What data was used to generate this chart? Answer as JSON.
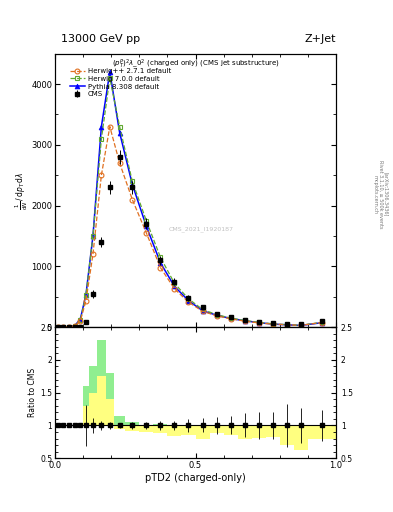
{
  "title_top": "13000 GeV pp",
  "title_right": "Z+Jet",
  "plot_title": "$(p_T^P)^2\\lambda_0^2$ (charged only) (CMS jet substructure)",
  "xlabel": "pTD2 (charged-only)",
  "ylabel_main_lines": [
    "mathrm d$^2$N",
    "mathrm d p$_T$ mathrm d$\\lambda$"
  ],
  "ylabel_ratio": "Ratio to CMS",
  "right_label1": "Rivet 3.1.10, ≥ 500k events",
  "right_label2": "[arXiv:1306.3436]",
  "right_label3": "mcplots.cern.ch",
  "watermark": "CMS_2021_I1920187",
  "x_bins": [
    0.0,
    0.02,
    0.04,
    0.06,
    0.08,
    0.1,
    0.12,
    0.15,
    0.18,
    0.21,
    0.25,
    0.3,
    0.35,
    0.4,
    0.45,
    0.5,
    0.55,
    0.6,
    0.65,
    0.7,
    0.75,
    0.8,
    0.85,
    0.9,
    1.0
  ],
  "cms_values": [
    0,
    0,
    0,
    0,
    0,
    80,
    550,
    1400,
    2300,
    2800,
    2300,
    1700,
    1100,
    750,
    480,
    330,
    210,
    160,
    120,
    85,
    60,
    55,
    45,
    95
  ],
  "cms_errors": [
    5,
    5,
    5,
    5,
    5,
    25,
    65,
    90,
    110,
    110,
    110,
    90,
    75,
    55,
    45,
    35,
    28,
    22,
    22,
    18,
    12,
    18,
    12,
    22
  ],
  "herwig271_values": [
    0,
    0,
    3,
    15,
    100,
    430,
    1200,
    2500,
    3300,
    2700,
    2100,
    1550,
    980,
    630,
    410,
    260,
    185,
    135,
    97,
    68,
    48,
    38,
    28,
    75
  ],
  "herwig700_values": [
    0,
    0,
    3,
    18,
    110,
    520,
    1500,
    3100,
    4100,
    3300,
    2400,
    1750,
    1150,
    720,
    465,
    290,
    205,
    148,
    108,
    78,
    53,
    39,
    29,
    78
  ],
  "pythia8_values": [
    0,
    0,
    3,
    22,
    130,
    530,
    1500,
    3300,
    4200,
    3200,
    2350,
    1660,
    1060,
    670,
    435,
    270,
    195,
    142,
    103,
    73,
    49,
    37,
    27,
    72
  ],
  "ratio_herwig271": [
    1.0,
    1.0,
    1.0,
    1.0,
    1.0,
    1.3,
    1.5,
    1.75,
    1.4,
    0.95,
    0.92,
    0.9,
    0.88,
    0.84,
    0.86,
    0.8,
    0.89,
    0.85,
    0.8,
    0.81,
    0.82,
    0.7,
    0.63,
    0.79
  ],
  "ratio_herwig700": [
    1.0,
    1.0,
    1.0,
    1.0,
    1.0,
    1.6,
    1.9,
    2.3,
    1.8,
    1.15,
    1.05,
    1.01,
    1.02,
    0.97,
    0.98,
    0.9,
    0.99,
    0.92,
    0.88,
    0.9,
    0.9,
    0.72,
    0.65,
    0.83
  ],
  "ratio_pythia8": [
    1.0,
    1.0,
    1.0,
    1.0,
    1.0,
    1.6,
    1.9,
    2.3,
    1.8,
    1.15,
    1.02,
    0.97,
    0.94,
    0.9,
    0.93,
    0.84,
    0.94,
    0.89,
    0.84,
    0.86,
    0.83,
    0.68,
    0.61,
    0.77
  ],
  "color_cms": "#000000",
  "color_herwig271": "#e07020",
  "color_herwig700": "#60a830",
  "color_pythia8": "#0000ff",
  "ylim_main": [
    0,
    4500
  ],
  "ylim_ratio": [
    0.5,
    2.5
  ],
  "bg_color": "#ffffff",
  "band_green": "#90ee90",
  "band_yellow": "#ffff80"
}
